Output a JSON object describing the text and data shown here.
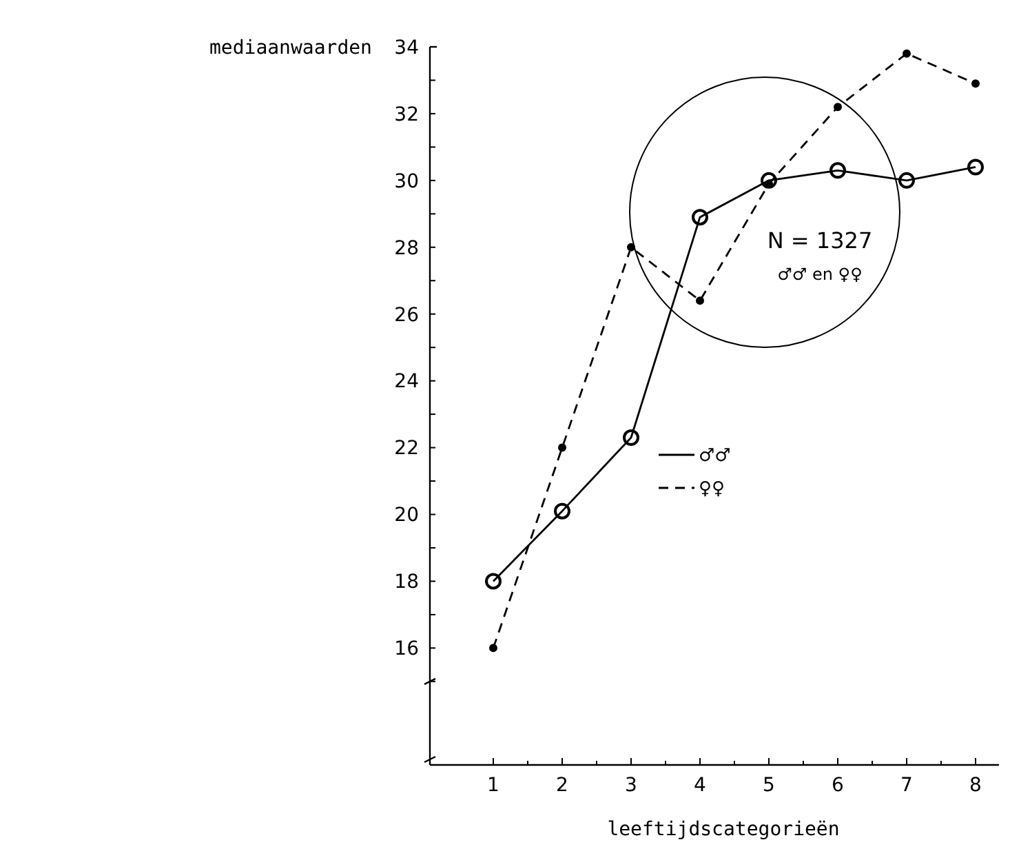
{
  "chart_data": {
    "type": "line",
    "xlabel": "leeftijdscategorieën",
    "ylabel": "mediaanwaarden",
    "categories": [
      "1",
      "2",
      "3",
      "4",
      "5",
      "6",
      "7",
      "8"
    ],
    "series": [
      {
        "name": "♂♂",
        "color": "#000000",
        "line_style": "solid",
        "values": [
          18,
          20.1,
          22.3,
          28.9,
          30,
          30.3,
          30,
          30.4
        ]
      },
      {
        "name": "♀♀",
        "color": "#000000",
        "line_style": "dashed",
        "values": [
          16,
          22,
          28,
          26.4,
          29.9,
          32.2,
          33.8,
          32.9
        ]
      }
    ],
    "marker": "circle",
    "ylim": [
      12.5,
      34
    ],
    "yticks": [
      {
        "value": 15,
        "label": null
      },
      16,
      {
        "value": 17,
        "label": null
      },
      18,
      {
        "value": 19,
        "label": null
      },
      20,
      {
        "value": 21,
        "label": null
      },
      22,
      {
        "value": 23,
        "label": null
      },
      24,
      {
        "value": 25,
        "label": null
      },
      26,
      {
        "value": 27,
        "label": null
      },
      28,
      {
        "value": 29,
        "label": null
      },
      30,
      {
        "value": 31,
        "label": null
      },
      32,
      {
        "value": 33,
        "label": null
      },
      34
    ],
    "legend": "center",
    "grid": false,
    "annotations": [
      "N = 1327",
      "♂♂ en ♀♀"
    ]
  }
}
